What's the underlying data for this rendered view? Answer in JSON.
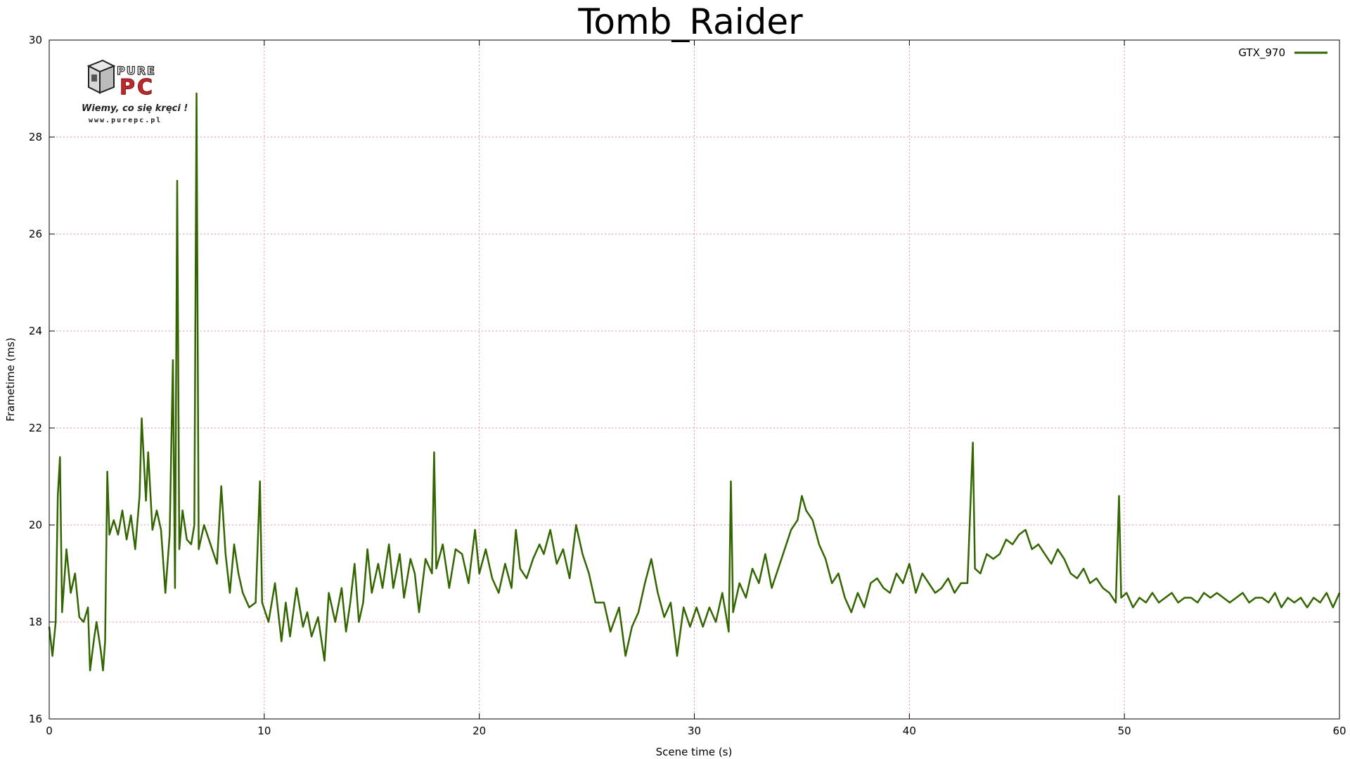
{
  "colors": {
    "series": "#336600",
    "grid": "#e58fa6",
    "axis": "#000000",
    "logo_red": "#c0292b"
  },
  "logo": {
    "brand_top": "PURE",
    "brand_main": "PC",
    "slogan": "Wiemy, co się kręci !",
    "url": "www.purepc.pl",
    "icon": "purepc-box-logo"
  },
  "chart_data": {
    "type": "line",
    "title": "Tomb_Raider",
    "xlabel": "Scene time (s)",
    "ylabel": "Frametime (ms)",
    "xlim": [
      0,
      60
    ],
    "ylim": [
      16,
      30
    ],
    "xticks": [
      0,
      10,
      20,
      30,
      40,
      50,
      60
    ],
    "yticks": [
      16,
      18,
      20,
      22,
      24,
      26,
      28,
      30
    ],
    "grid": true,
    "legend_position": "top-right",
    "series": [
      {
        "name": "GTX_970",
        "color": "#336600",
        "points": [
          [
            0.0,
            17.9
          ],
          [
            0.15,
            17.3
          ],
          [
            0.3,
            18.0
          ],
          [
            0.4,
            20.6
          ],
          [
            0.5,
            21.4
          ],
          [
            0.6,
            18.2
          ],
          [
            0.8,
            19.5
          ],
          [
            1.0,
            18.6
          ],
          [
            1.2,
            19.0
          ],
          [
            1.4,
            18.1
          ],
          [
            1.6,
            18.0
          ],
          [
            1.8,
            18.3
          ],
          [
            1.9,
            17.0
          ],
          [
            2.1,
            17.7
          ],
          [
            2.2,
            18.0
          ],
          [
            2.4,
            17.4
          ],
          [
            2.5,
            17.0
          ],
          [
            2.6,
            17.6
          ],
          [
            2.7,
            21.1
          ],
          [
            2.8,
            19.8
          ],
          [
            3.0,
            20.1
          ],
          [
            3.2,
            19.8
          ],
          [
            3.4,
            20.3
          ],
          [
            3.6,
            19.7
          ],
          [
            3.8,
            20.2
          ],
          [
            4.0,
            19.5
          ],
          [
            4.2,
            20.6
          ],
          [
            4.3,
            22.2
          ],
          [
            4.5,
            20.5
          ],
          [
            4.6,
            21.5
          ],
          [
            4.8,
            19.9
          ],
          [
            5.0,
            20.3
          ],
          [
            5.2,
            19.9
          ],
          [
            5.4,
            18.6
          ],
          [
            5.6,
            19.8
          ],
          [
            5.75,
            23.4
          ],
          [
            5.85,
            18.7
          ],
          [
            5.95,
            27.1
          ],
          [
            6.05,
            19.5
          ],
          [
            6.2,
            20.3
          ],
          [
            6.4,
            19.7
          ],
          [
            6.6,
            19.6
          ],
          [
            6.75,
            20.0
          ],
          [
            6.85,
            28.9
          ],
          [
            6.95,
            19.5
          ],
          [
            7.2,
            20.0
          ],
          [
            7.5,
            19.6
          ],
          [
            7.8,
            19.2
          ],
          [
            8.0,
            20.8
          ],
          [
            8.2,
            19.4
          ],
          [
            8.4,
            18.6
          ],
          [
            8.6,
            19.6
          ],
          [
            8.8,
            19.0
          ],
          [
            9.0,
            18.6
          ],
          [
            9.3,
            18.3
          ],
          [
            9.6,
            18.4
          ],
          [
            9.8,
            20.9
          ],
          [
            9.9,
            18.4
          ],
          [
            10.2,
            18.0
          ],
          [
            10.5,
            18.8
          ],
          [
            10.8,
            17.6
          ],
          [
            11.0,
            18.4
          ],
          [
            11.2,
            17.7
          ],
          [
            11.5,
            18.7
          ],
          [
            11.8,
            17.9
          ],
          [
            12.0,
            18.2
          ],
          [
            12.2,
            17.7
          ],
          [
            12.5,
            18.1
          ],
          [
            12.8,
            17.2
          ],
          [
            13.0,
            18.6
          ],
          [
            13.3,
            18.0
          ],
          [
            13.6,
            18.7
          ],
          [
            13.8,
            17.8
          ],
          [
            14.0,
            18.4
          ],
          [
            14.2,
            19.2
          ],
          [
            14.4,
            18.0
          ],
          [
            14.6,
            18.4
          ],
          [
            14.8,
            19.5
          ],
          [
            15.0,
            18.6
          ],
          [
            15.3,
            19.2
          ],
          [
            15.5,
            18.7
          ],
          [
            15.8,
            19.6
          ],
          [
            16.0,
            18.7
          ],
          [
            16.3,
            19.4
          ],
          [
            16.5,
            18.5
          ],
          [
            16.8,
            19.3
          ],
          [
            17.0,
            19.0
          ],
          [
            17.2,
            18.2
          ],
          [
            17.5,
            19.3
          ],
          [
            17.8,
            19.0
          ],
          [
            17.9,
            21.5
          ],
          [
            18.0,
            19.1
          ],
          [
            18.3,
            19.6
          ],
          [
            18.6,
            18.7
          ],
          [
            18.9,
            19.5
          ],
          [
            19.2,
            19.4
          ],
          [
            19.5,
            18.8
          ],
          [
            19.8,
            19.9
          ],
          [
            20.0,
            19.0
          ],
          [
            20.3,
            19.5
          ],
          [
            20.6,
            18.9
          ],
          [
            20.9,
            18.6
          ],
          [
            21.2,
            19.2
          ],
          [
            21.5,
            18.7
          ],
          [
            21.7,
            19.9
          ],
          [
            21.9,
            19.1
          ],
          [
            22.2,
            18.9
          ],
          [
            22.5,
            19.3
          ],
          [
            22.8,
            19.6
          ],
          [
            23.0,
            19.4
          ],
          [
            23.3,
            19.9
          ],
          [
            23.6,
            19.2
          ],
          [
            23.9,
            19.5
          ],
          [
            24.2,
            18.9
          ],
          [
            24.5,
            20.0
          ],
          [
            24.8,
            19.4
          ],
          [
            25.1,
            19.0
          ],
          [
            25.4,
            18.4
          ],
          [
            25.8,
            18.4
          ],
          [
            26.1,
            17.8
          ],
          [
            26.5,
            18.3
          ],
          [
            26.8,
            17.3
          ],
          [
            27.1,
            17.9
          ],
          [
            27.4,
            18.2
          ],
          [
            27.7,
            18.8
          ],
          [
            28.0,
            19.3
          ],
          [
            28.3,
            18.6
          ],
          [
            28.6,
            18.1
          ],
          [
            28.9,
            18.4
          ],
          [
            29.2,
            17.3
          ],
          [
            29.5,
            18.3
          ],
          [
            29.8,
            17.9
          ],
          [
            30.1,
            18.3
          ],
          [
            30.4,
            17.9
          ],
          [
            30.7,
            18.3
          ],
          [
            31.0,
            18.0
          ],
          [
            31.3,
            18.6
          ],
          [
            31.6,
            17.8
          ],
          [
            31.7,
            20.9
          ],
          [
            31.8,
            18.2
          ],
          [
            32.1,
            18.8
          ],
          [
            32.4,
            18.5
          ],
          [
            32.7,
            19.1
          ],
          [
            33.0,
            18.8
          ],
          [
            33.3,
            19.4
          ],
          [
            33.6,
            18.7
          ],
          [
            33.9,
            19.1
          ],
          [
            34.2,
            19.5
          ],
          [
            34.5,
            19.9
          ],
          [
            34.8,
            20.1
          ],
          [
            35.0,
            20.6
          ],
          [
            35.2,
            20.3
          ],
          [
            35.5,
            20.1
          ],
          [
            35.8,
            19.6
          ],
          [
            36.1,
            19.3
          ],
          [
            36.4,
            18.8
          ],
          [
            36.7,
            19.0
          ],
          [
            37.0,
            18.5
          ],
          [
            37.3,
            18.2
          ],
          [
            37.6,
            18.6
          ],
          [
            37.9,
            18.3
          ],
          [
            38.2,
            18.8
          ],
          [
            38.5,
            18.9
          ],
          [
            38.8,
            18.7
          ],
          [
            39.1,
            18.6
          ],
          [
            39.4,
            19.0
          ],
          [
            39.7,
            18.8
          ],
          [
            40.0,
            19.2
          ],
          [
            40.3,
            18.6
          ],
          [
            40.6,
            19.0
          ],
          [
            40.9,
            18.8
          ],
          [
            41.2,
            18.6
          ],
          [
            41.5,
            18.7
          ],
          [
            41.8,
            18.9
          ],
          [
            42.1,
            18.6
          ],
          [
            42.4,
            18.8
          ],
          [
            42.7,
            18.8
          ],
          [
            42.95,
            21.7
          ],
          [
            43.05,
            19.1
          ],
          [
            43.3,
            19.0
          ],
          [
            43.6,
            19.4
          ],
          [
            43.9,
            19.3
          ],
          [
            44.2,
            19.4
          ],
          [
            44.5,
            19.7
          ],
          [
            44.8,
            19.6
          ],
          [
            45.1,
            19.8
          ],
          [
            45.4,
            19.9
          ],
          [
            45.7,
            19.5
          ],
          [
            46.0,
            19.6
          ],
          [
            46.3,
            19.4
          ],
          [
            46.6,
            19.2
          ],
          [
            46.9,
            19.5
          ],
          [
            47.2,
            19.3
          ],
          [
            47.5,
            19.0
          ],
          [
            47.8,
            18.9
          ],
          [
            48.1,
            19.1
          ],
          [
            48.4,
            18.8
          ],
          [
            48.7,
            18.9
          ],
          [
            49.0,
            18.7
          ],
          [
            49.3,
            18.6
          ],
          [
            49.6,
            18.4
          ],
          [
            49.75,
            20.6
          ],
          [
            49.85,
            18.5
          ],
          [
            50.1,
            18.6
          ],
          [
            50.4,
            18.3
          ],
          [
            50.7,
            18.5
          ],
          [
            51.0,
            18.4
          ],
          [
            51.3,
            18.6
          ],
          [
            51.6,
            18.4
          ],
          [
            51.9,
            18.5
          ],
          [
            52.2,
            18.6
          ],
          [
            52.5,
            18.4
          ],
          [
            52.8,
            18.5
          ],
          [
            53.1,
            18.5
          ],
          [
            53.4,
            18.4
          ],
          [
            53.7,
            18.6
          ],
          [
            54.0,
            18.5
          ],
          [
            54.3,
            18.6
          ],
          [
            54.6,
            18.5
          ],
          [
            54.9,
            18.4
          ],
          [
            55.2,
            18.5
          ],
          [
            55.5,
            18.6
          ],
          [
            55.8,
            18.4
          ],
          [
            56.1,
            18.5
          ],
          [
            56.4,
            18.5
          ],
          [
            56.7,
            18.4
          ],
          [
            57.0,
            18.6
          ],
          [
            57.3,
            18.3
          ],
          [
            57.6,
            18.5
          ],
          [
            57.9,
            18.4
          ],
          [
            58.2,
            18.5
          ],
          [
            58.5,
            18.3
          ],
          [
            58.8,
            18.5
          ],
          [
            59.1,
            18.4
          ],
          [
            59.4,
            18.6
          ],
          [
            59.7,
            18.3
          ],
          [
            60.0,
            18.6
          ]
        ]
      }
    ]
  }
}
